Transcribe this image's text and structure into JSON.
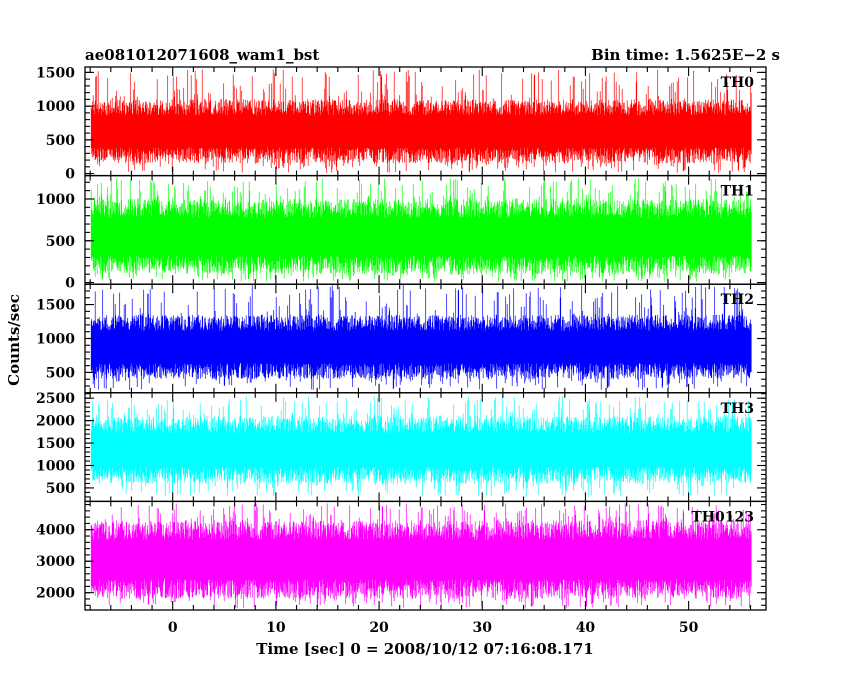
{
  "chart_data": {
    "type": "line",
    "title_left": "ae081012071608_wam1_bst",
    "title_right": "Bin time: 1.5625E−2 s",
    "xlabel": "Time [sec] 0 = 2008/10/12 07:16:08.171",
    "ylabel": "Counts/sec",
    "xlim": [
      -8.5,
      57.5
    ],
    "data_range": [
      -7.9,
      56.1
    ],
    "x_ticks": [
      0,
      10,
      20,
      30,
      40,
      50
    ],
    "x_tick_labels": [
      "0",
      "10",
      "20",
      "30",
      "40",
      "50"
    ],
    "panels": [
      {
        "name": "TH0",
        "color": "#ff0000",
        "ylim": [
          -30,
          1580
        ],
        "y_ticks": [
          0,
          500,
          1000,
          1500
        ],
        "y_tick_labels": [
          "0",
          "500",
          "1000",
          "1500"
        ],
        "typical_low": 150,
        "typical_high": 1100,
        "min": 10,
        "max": 1550
      },
      {
        "name": "TH1",
        "color": "#00ff00",
        "ylim": [
          -20,
          1280
        ],
        "y_ticks": [
          0,
          500,
          1000
        ],
        "y_tick_labels": [
          "0",
          "500",
          "1000"
        ],
        "typical_low": 100,
        "typical_high": 1000,
        "min": 10,
        "max": 1250
      },
      {
        "name": "TH2",
        "color": "#0000ff",
        "ylim": [
          200,
          1800
        ],
        "y_ticks": [
          500,
          1000,
          1500
        ],
        "y_tick_labels": [
          "500",
          "1000",
          "1500"
        ],
        "typical_low": 400,
        "typical_high": 1350,
        "min": 240,
        "max": 1800
      },
      {
        "name": "TH3",
        "color": "#00ffff",
        "ylim": [
          200,
          2620
        ],
        "y_ticks": [
          500,
          1000,
          1500,
          2000,
          2500
        ],
        "y_tick_labels": [
          "500",
          "1000",
          "1500",
          "2000",
          "2500"
        ],
        "typical_low": 600,
        "typical_high": 2100,
        "min": 300,
        "max": 2550
      },
      {
        "name": "TH0123",
        "color": "#ff00ff",
        "ylim": [
          1450,
          4900
        ],
        "y_ticks": [
          2000,
          3000,
          4000
        ],
        "y_tick_labels": [
          "2000",
          "3000",
          "4000"
        ],
        "typical_low": 1800,
        "typical_high": 4300,
        "min": 1500,
        "max": 4850
      }
    ]
  }
}
